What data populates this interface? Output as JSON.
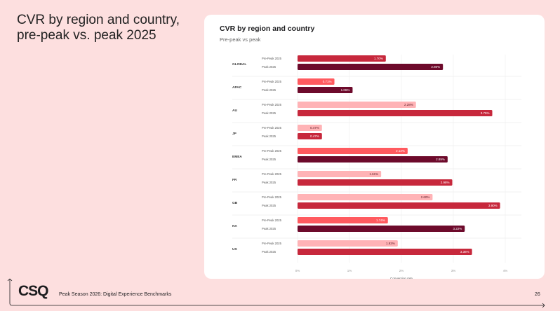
{
  "headline": "CVR by region and country, pre-peak vs. peak 2025",
  "card": {
    "title": "CVR by region and country",
    "subtitle": "Pre-peak vs peak"
  },
  "footer": {
    "logo": "CSQ",
    "text": "Peak Season 2026: Digital Experience Benchmarks",
    "page_number": "26"
  },
  "colors": {
    "background": "#fddfdf",
    "pre_peak_region": "#ff5a5f",
    "peak_region": "#6d0a2b",
    "pre_peak_country": "#ffb3b6",
    "peak_country": "#c7283c",
    "global_pre_peak": "#c7283c"
  },
  "chart_data": {
    "type": "bar",
    "orientation": "horizontal",
    "xlabel": "Conversion rate",
    "xlim": [
      0,
      4
    ],
    "x_ticks": [
      "0%",
      "1%",
      "2%",
      "3%",
      "4%"
    ],
    "grid": true,
    "categories": [
      "GLOBAL",
      "APAC",
      "AU",
      "JP",
      "EMEA",
      "FR",
      "GB",
      "NA",
      "US"
    ],
    "series": [
      {
        "name": "Pre-Peak 2025",
        "values": [
          1.7,
          0.71,
          2.28,
          0.47,
          2.12,
          1.61,
          2.6,
          1.74,
          1.93
        ],
        "labels": [
          "1.70%",
          "0.71%",
          "2.28%",
          "0.47%",
          "2.12%",
          "1.61%",
          "2.60%",
          "1.74%",
          "1.93%"
        ],
        "colors": [
          "#c7283c",
          "#ff5a5f",
          "#ffb3b6",
          "#ffb3b6",
          "#ff5a5f",
          "#ffb3b6",
          "#ffb3b6",
          "#ff5a5f",
          "#ffb3b6"
        ]
      },
      {
        "name": "Peak 2025",
        "values": [
          2.8,
          1.06,
          3.75,
          0.47,
          2.89,
          2.98,
          3.9,
          3.22,
          3.36
        ],
        "labels": [
          "2.80%",
          "1.06%",
          "3.75%",
          "0.47%",
          "2.89%",
          "2.98%",
          "3.90%",
          "3.22%",
          "3.36%"
        ],
        "colors": [
          "#6d0a2b",
          "#6d0a2b",
          "#c7283c",
          "#c7283c",
          "#6d0a2b",
          "#c7283c",
          "#c7283c",
          "#6d0a2b",
          "#c7283c"
        ]
      }
    ]
  }
}
